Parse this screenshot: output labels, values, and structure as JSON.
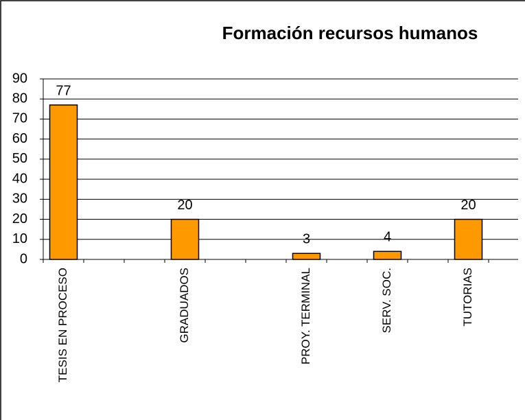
{
  "chart_data": {
    "type": "bar",
    "title": "Formación recursos humanos",
    "categories": [
      "TESIS EN PROCESO",
      null,
      null,
      "GRADUADOS",
      null,
      null,
      "PROY. TERMINAL",
      null,
      "SERV. SOC.",
      null,
      "TUTORIAS"
    ],
    "values": [
      77,
      null,
      null,
      20,
      null,
      null,
      3,
      null,
      4,
      null,
      20
    ],
    "color": "#ff9900",
    "ylim": [
      0,
      90
    ],
    "yticks": [
      0,
      10,
      20,
      30,
      40,
      50,
      60,
      70,
      80,
      90
    ],
    "grid": true
  }
}
